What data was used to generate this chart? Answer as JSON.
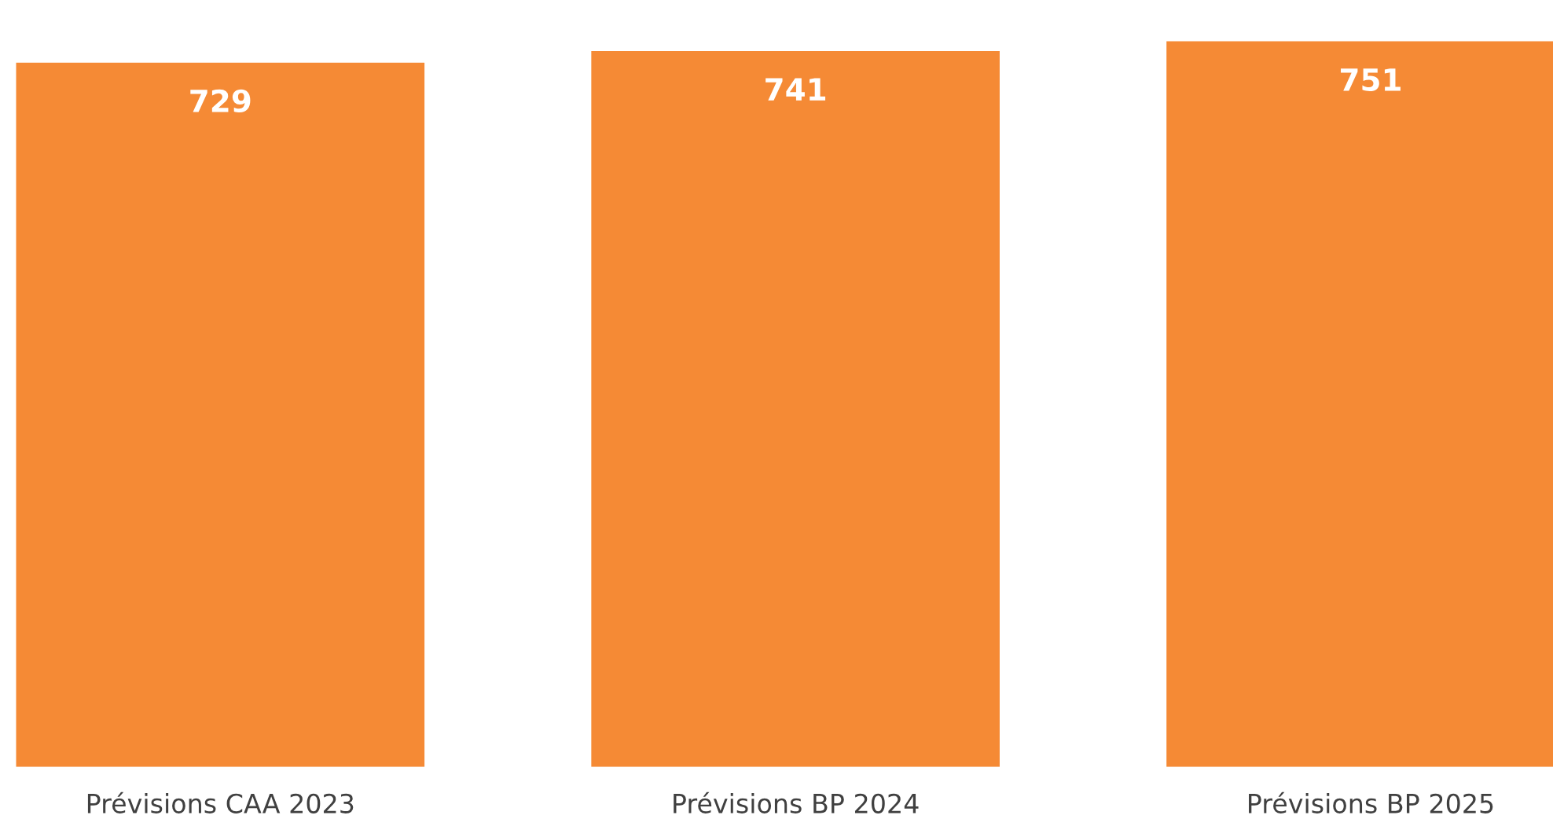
{
  "chart_data": {
    "type": "bar",
    "categories": [
      "Prévisions CAA 2023",
      "Prévisions BP 2024",
      "Prévisions BP 2025"
    ],
    "values": [
      729,
      741,
      751
    ],
    "color": "#f58a35",
    "data_labels": true,
    "grid": false,
    "legend": false
  }
}
